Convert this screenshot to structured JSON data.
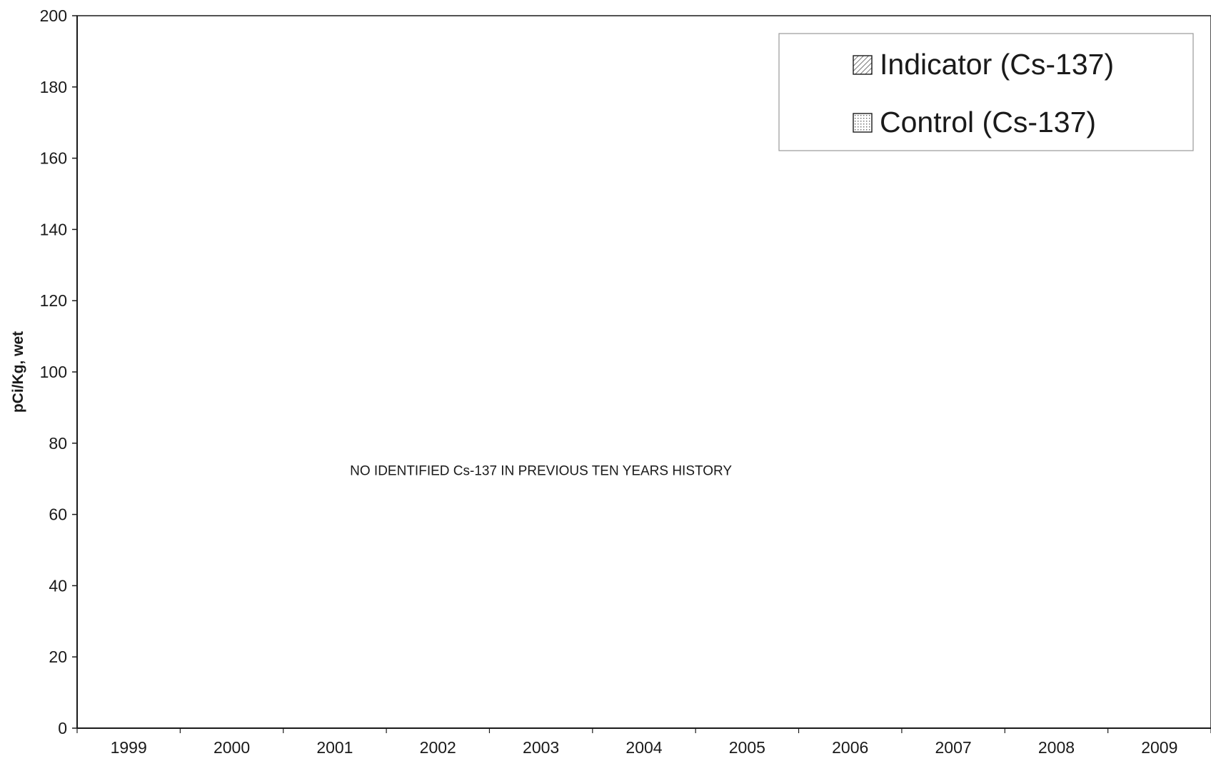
{
  "chart_data": {
    "type": "bar",
    "title": "",
    "xlabel": "",
    "ylabel": "pCi/Kg, wet",
    "categories": [
      "1999",
      "2000",
      "2001",
      "2002",
      "2003",
      "2004",
      "2005",
      "2006",
      "2007",
      "2008",
      "2009"
    ],
    "ylim": [
      0,
      200
    ],
    "yticks": [
      0,
      20,
      40,
      60,
      80,
      100,
      120,
      140,
      160,
      180,
      200
    ],
    "grid": false,
    "legend_position": "top-right",
    "series": [
      {
        "name": "Indicator (Cs-137)",
        "pattern": "diagonal-hatch",
        "values": [
          null,
          null,
          null,
          null,
          null,
          null,
          null,
          null,
          null,
          null,
          null
        ]
      },
      {
        "name": "Control (Cs-137)",
        "pattern": "dotted",
        "values": [
          null,
          null,
          null,
          null,
          null,
          null,
          null,
          null,
          null,
          null,
          null
        ]
      }
    ],
    "annotations": [
      {
        "text": "NO IDENTIFIED Cs-137 IN PREVIOUS TEN YEARS HISTORY",
        "x": "2003",
        "y": 71
      }
    ],
    "colors": {
      "axis": "#1a1a1a",
      "legend_border": "#9a9a9a"
    }
  }
}
